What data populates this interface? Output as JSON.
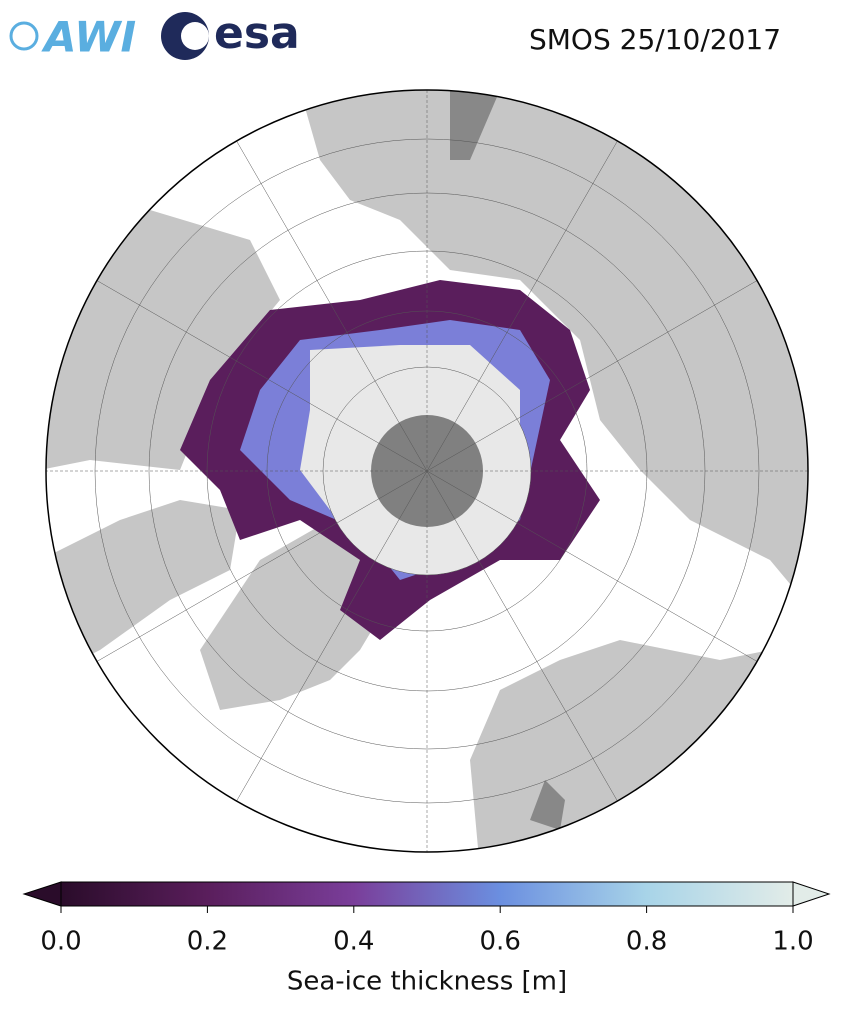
{
  "title": "SMOS 25/10/2017",
  "logos": [
    "AWI",
    "esa"
  ],
  "colorbar": {
    "label": "Sea-ice thickness [m]",
    "lim": [
      0,
      1
    ],
    "ticks": [
      {
        "value": 0,
        "label": "0.0"
      },
      {
        "value": 0.2,
        "label": "0.2"
      },
      {
        "value": 0.4,
        "label": "0.4"
      },
      {
        "value": 0.6,
        "label": "0.6"
      },
      {
        "value": 0.8,
        "label": "0.8"
      },
      {
        "value": 1,
        "label": "1.0"
      }
    ],
    "colors": [
      "#2a0c2a",
      "#5a1e5c",
      "#7a3e9a",
      "#6b8fe0",
      "#a8d4e8",
      "#e2ece8"
    ]
  }
}
